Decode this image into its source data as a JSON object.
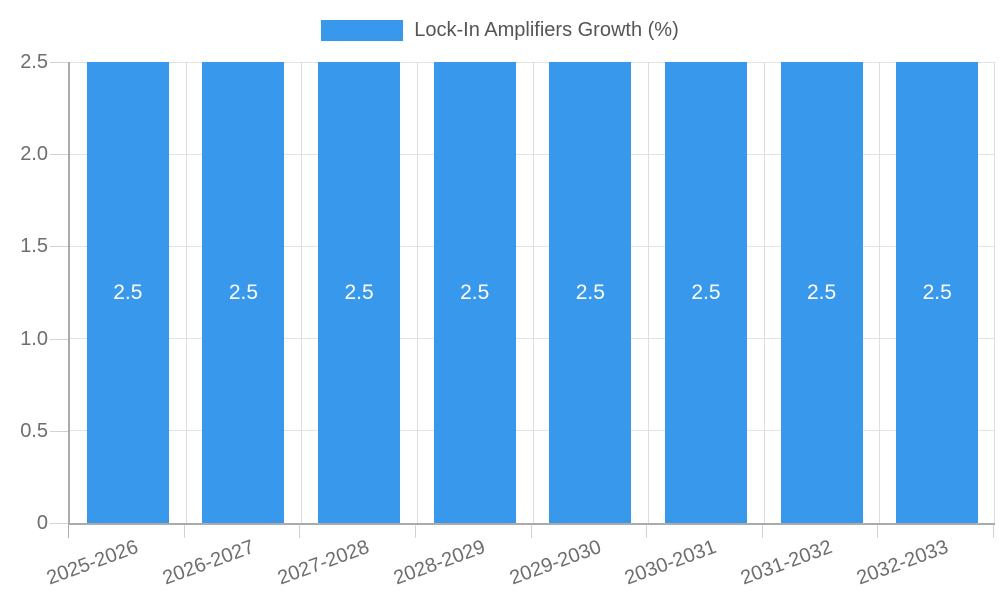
{
  "legend": {
    "label": "Lock-In Amplifiers Growth (%)"
  },
  "chart_data": {
    "type": "bar",
    "title": "",
    "xlabel": "",
    "ylabel": "",
    "categories": [
      "2025-2026",
      "2026-2027",
      "2027-2028",
      "2028-2029",
      "2029-2030",
      "2030-2031",
      "2031-2032",
      "2032-2033"
    ],
    "series": [
      {
        "name": "Lock-In Amplifiers Growth (%)",
        "values": [
          2.5,
          2.5,
          2.5,
          2.5,
          2.5,
          2.5,
          2.5,
          2.5
        ]
      }
    ],
    "bar_value_labels": [
      "2.5",
      "2.5",
      "2.5",
      "2.5",
      "2.5",
      "2.5",
      "2.5",
      "2.5"
    ],
    "y_ticks": [
      "0",
      "0.5",
      "1.0",
      "1.5",
      "2.0",
      "2.5"
    ],
    "ylim": [
      0,
      2.5
    ],
    "grid": true,
    "legend_position": "top",
    "x_tick_rotation_deg": -20,
    "colors": {
      "bar": "#3899ec",
      "bar_label": "#ffffff",
      "axis": "#ababab",
      "gridline": "#e3e3e3",
      "vertical_gridline": "#dedede",
      "tick_mark": "#d2d2d2",
      "tick_text": "#6e6e6e",
      "legend_text": "#555555",
      "background": "#ffffff"
    }
  }
}
